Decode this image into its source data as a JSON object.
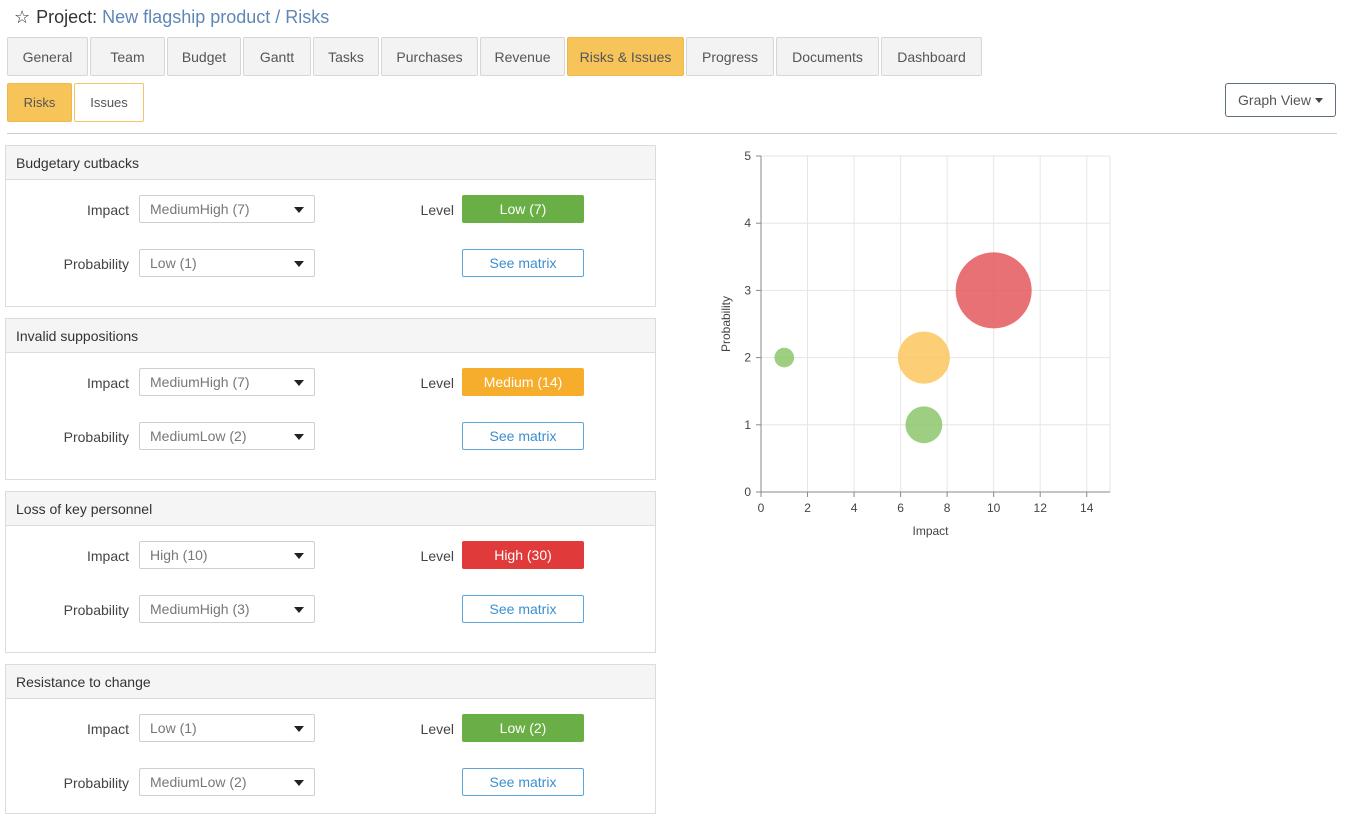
{
  "header": {
    "prefix": "Project:",
    "name": "New flagship product / Risks"
  },
  "tabs": [
    {
      "label": "General",
      "active": false
    },
    {
      "label": "Team",
      "active": false
    },
    {
      "label": "Budget",
      "active": false
    },
    {
      "label": "Gantt",
      "active": false
    },
    {
      "label": "Tasks",
      "active": false
    },
    {
      "label": "Purchases",
      "active": false
    },
    {
      "label": "Revenue",
      "active": false
    },
    {
      "label": "Risks & Issues",
      "active": true
    },
    {
      "label": "Progress",
      "active": false
    },
    {
      "label": "Documents",
      "active": false
    },
    {
      "label": "Dashboard",
      "active": false
    }
  ],
  "subtabs": [
    {
      "label": "Risks",
      "active": true
    },
    {
      "label": "Issues",
      "active": false
    }
  ],
  "view_button": {
    "label": "Graph View"
  },
  "labels": {
    "impact": "Impact",
    "probability": "Probability",
    "level": "Level",
    "matrix": "See matrix"
  },
  "level_colors": {
    "low": "#6aaf45",
    "medium": "#f6ad2b",
    "high": "#e03a3a"
  },
  "risks": [
    {
      "title": "Budgetary cutbacks",
      "impact": "MediumHigh (7)",
      "probability": "Low (1)",
      "level": "Low (7)",
      "severity": "low"
    },
    {
      "title": "Invalid suppositions",
      "impact": "MediumHigh (7)",
      "probability": "MediumLow (2)",
      "level": "Medium (14)",
      "severity": "medium"
    },
    {
      "title": "Loss of key personnel",
      "impact": "High (10)",
      "probability": "MediumHigh (3)",
      "level": "High (30)",
      "severity": "high"
    },
    {
      "title": "Resistance to change",
      "impact": "Low (1)",
      "probability": "MediumLow (2)",
      "level": "Low (2)",
      "severity": "low"
    }
  ],
  "chart_data": {
    "type": "scatter",
    "title": "",
    "xlabel": "Impact",
    "ylabel": "Probability",
    "xlim": [
      0,
      15
    ],
    "ylim": [
      0,
      5
    ],
    "xticks": [
      0,
      2,
      4,
      6,
      8,
      10,
      12,
      14
    ],
    "yticks": [
      0,
      1,
      2,
      3,
      4,
      5
    ],
    "grid": true,
    "points": [
      {
        "x": 1,
        "y": 2,
        "size": 2,
        "color": "#8cc56b"
      },
      {
        "x": 7,
        "y": 1,
        "size": 7,
        "color": "#8cc56b"
      },
      {
        "x": 7,
        "y": 2,
        "size": 14,
        "color": "#fbc55d"
      },
      {
        "x": 10,
        "y": 3,
        "size": 30,
        "color": "#e3585d"
      }
    ]
  }
}
